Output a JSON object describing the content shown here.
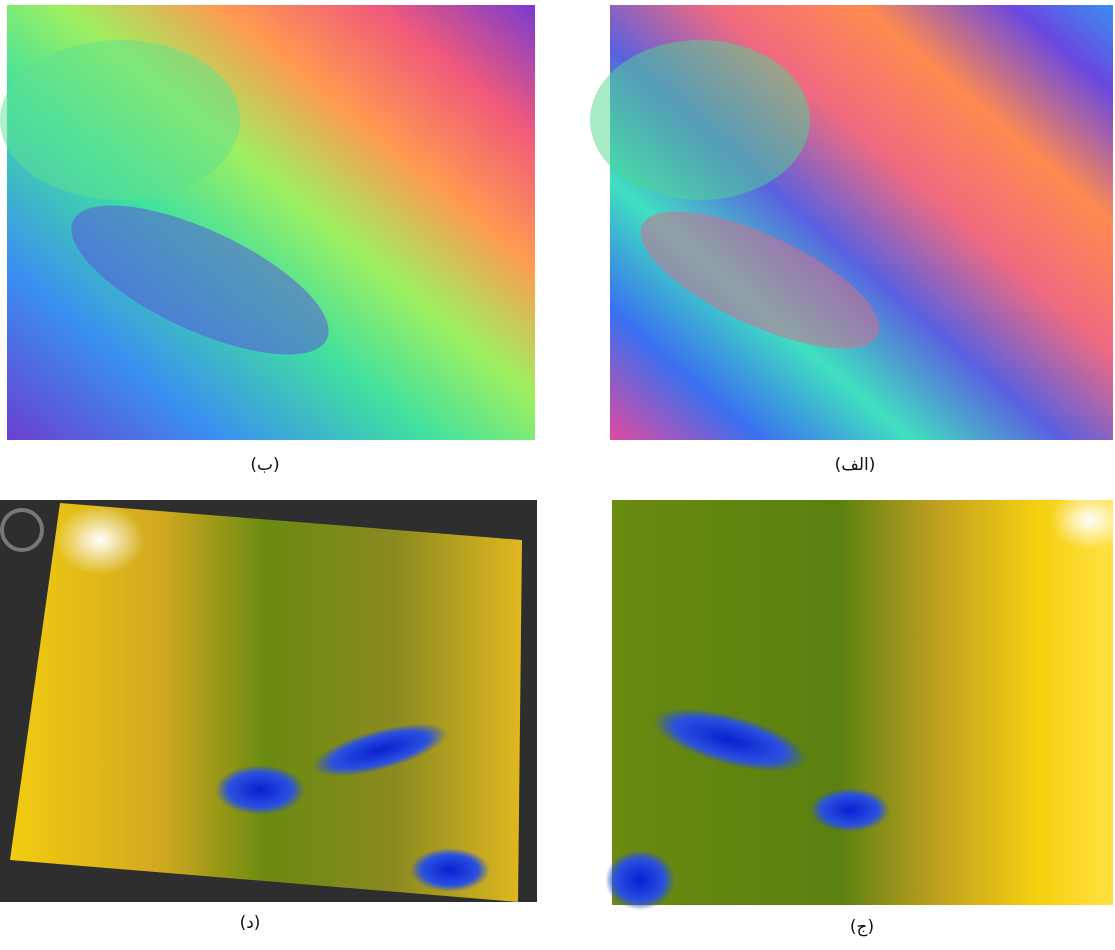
{
  "figure": {
    "panels": [
      {
        "caption": "(ب)"
      },
      {
        "caption": "(الف)"
      },
      {
        "caption": "(د)"
      },
      {
        "caption": "(ج)"
      }
    ]
  }
}
